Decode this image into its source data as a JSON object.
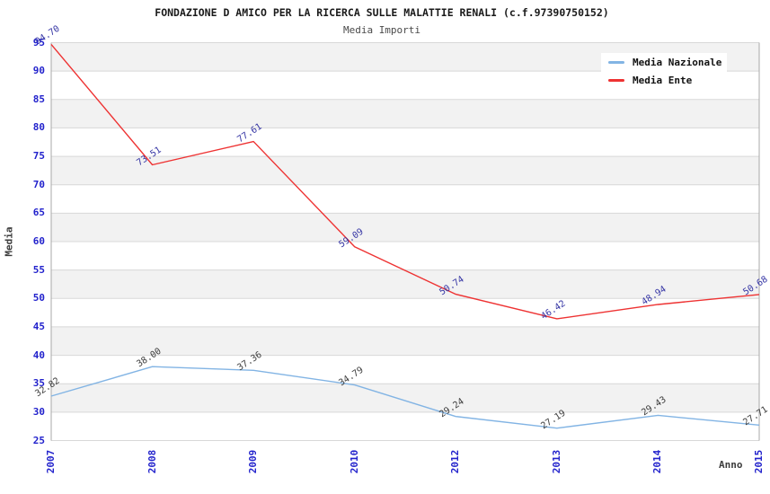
{
  "title": "FONDAZIONE D AMICO PER LA RICERCA SULLE MALATTIE RENALI (c.f.97390750152)",
  "subtitle": "Media Importi",
  "chart_data": {
    "type": "line",
    "categories": [
      "2007",
      "2008",
      "2009",
      "2010",
      "2012",
      "2013",
      "2014",
      "2015"
    ],
    "xlabel": "Anno",
    "ylabel": "Media",
    "ylim": [
      25,
      95
    ],
    "ytick_step": 5,
    "grid": "horizontal-bands-alternating",
    "legend_position": "top-right",
    "series": [
      {
        "name": "Media Nazionale",
        "color": "#82b4e4",
        "label_color": "#3c3c3c",
        "values": [
          32.82,
          38.0,
          37.36,
          34.79,
          29.24,
          27.19,
          29.43,
          27.71
        ]
      },
      {
        "name": "Media Ente",
        "color": "#ee3232",
        "label_color": "#3434a4",
        "values": [
          94.7,
          73.51,
          77.61,
          59.09,
          50.74,
          46.42,
          48.94,
          50.68
        ]
      }
    ]
  },
  "colors": {
    "band_gray": "#f2f2f2",
    "gridline": "#d8d8d8",
    "axis_border": "#a8a8a8",
    "tick_label_blue": "#2222cc",
    "background": "#ffffff"
  }
}
